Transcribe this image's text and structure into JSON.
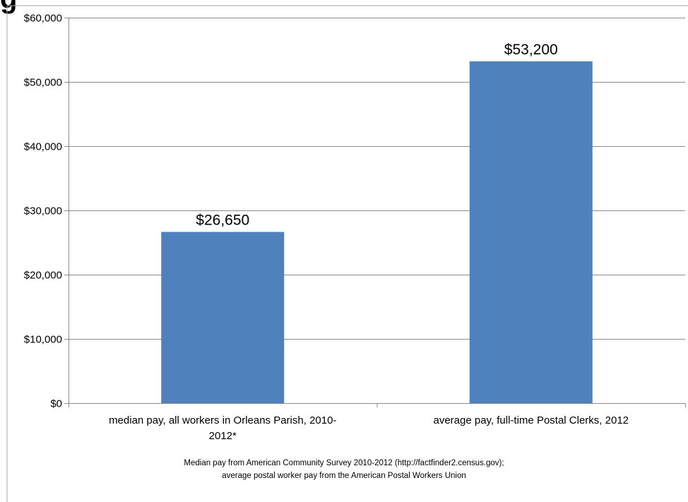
{
  "chart_data": {
    "type": "bar",
    "title": "g",
    "categories": [
      "median pay, all workers in Orleans Parish, 2010-2012*",
      "average pay, full-time Postal Clerks, 2012"
    ],
    "values": [
      26650,
      53200
    ],
    "data_labels": [
      "$26,650",
      "$53,200"
    ],
    "yticks": [
      "$0",
      "$10,000",
      "$20,000",
      "$30,000",
      "$40,000",
      "$50,000",
      "$60,000"
    ],
    "ylim": [
      0,
      60000
    ],
    "grid": true,
    "legend": "none",
    "bar_color": "#4F81BD",
    "xlabel": "",
    "ylabel": ""
  },
  "footnote": {
    "line1": "Median pay from American Community Survey 2010-2012 (http://factfinder2.census.gov);",
    "line2": "average postal worker pay from the American Postal Workers Union"
  }
}
